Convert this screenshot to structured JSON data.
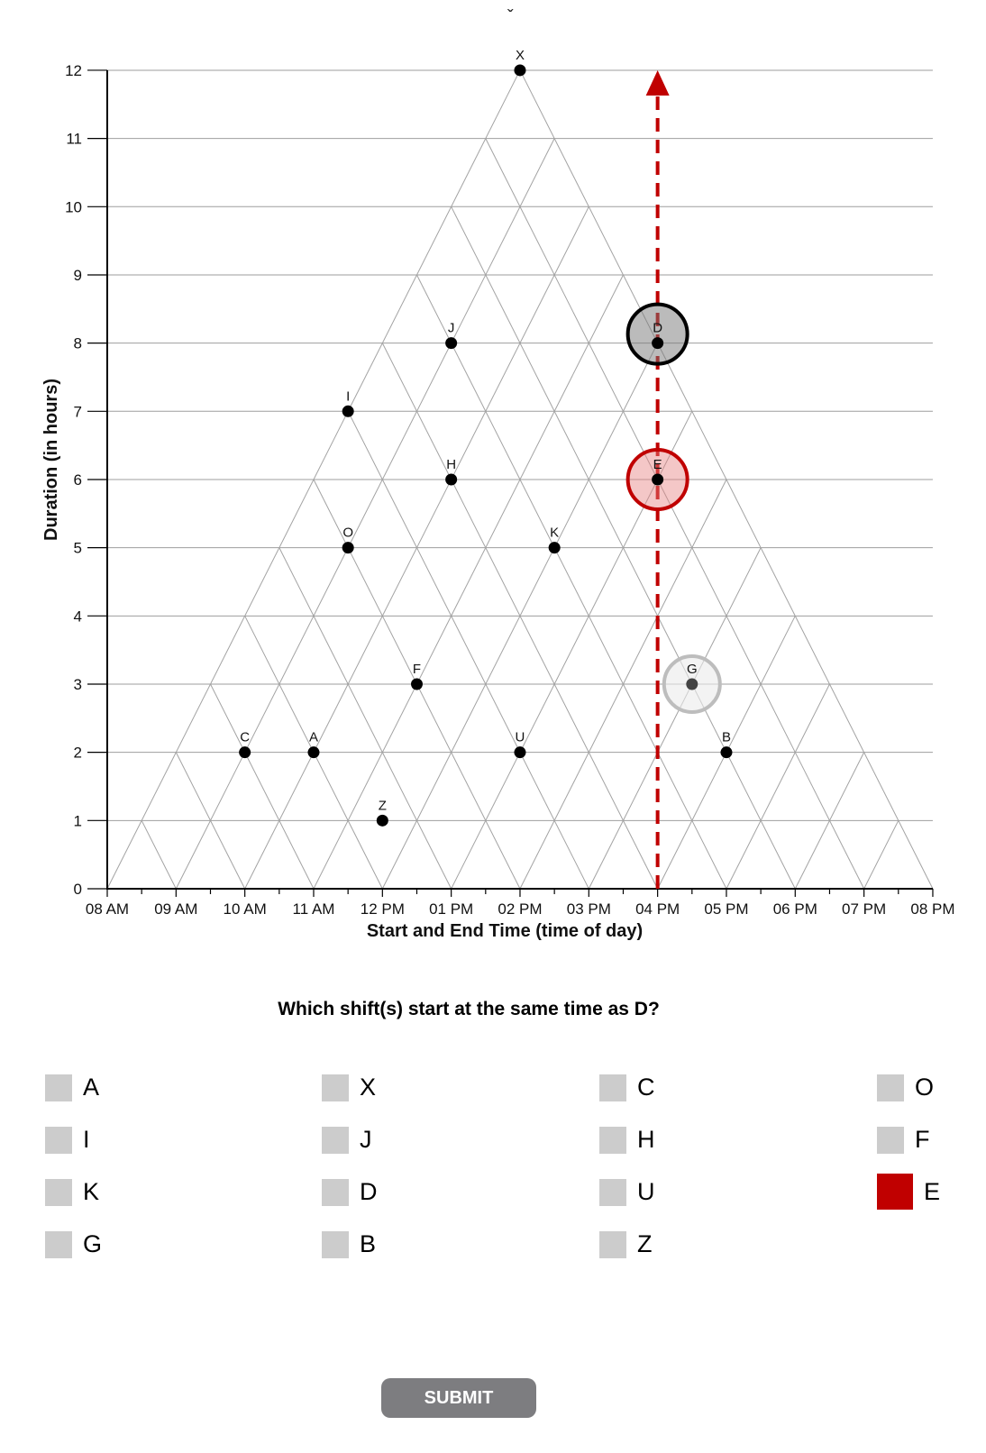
{
  "header": {
    "caret": "ˇ"
  },
  "chart_data": {
    "type": "scatter",
    "xlabel": "Start and End Time (time of day)",
    "ylabel": "Duration (in hours)",
    "x_ticks": [
      "08 AM",
      "09 AM",
      "10 AM",
      "11 AM",
      "12 PM",
      "01 PM",
      "02 PM",
      "03 PM",
      "04 PM",
      "05 PM",
      "06 PM",
      "07 PM",
      "08 PM"
    ],
    "y_ticks": [
      0,
      1,
      2,
      3,
      4,
      5,
      6,
      7,
      8,
      9,
      10,
      11,
      12
    ],
    "xlim_hours": [
      8,
      20
    ],
    "ylim": [
      0,
      12
    ],
    "grid": "horizontal lines and triangular start/end grid",
    "points": [
      {
        "label": "X",
        "midpoint_hour": 14,
        "duration": 12
      },
      {
        "label": "J",
        "midpoint_hour": 13,
        "duration": 8
      },
      {
        "label": "D",
        "midpoint_hour": 16,
        "duration": 8
      },
      {
        "label": "I",
        "midpoint_hour": 11.5,
        "duration": 7
      },
      {
        "label": "H",
        "midpoint_hour": 13,
        "duration": 6
      },
      {
        "label": "E",
        "midpoint_hour": 16,
        "duration": 6
      },
      {
        "label": "O",
        "midpoint_hour": 11.5,
        "duration": 5
      },
      {
        "label": "K",
        "midpoint_hour": 14.5,
        "duration": 5
      },
      {
        "label": "F",
        "midpoint_hour": 12.5,
        "duration": 3
      },
      {
        "label": "G",
        "midpoint_hour": 16.5,
        "duration": 3
      },
      {
        "label": "C",
        "midpoint_hour": 10,
        "duration": 2
      },
      {
        "label": "A",
        "midpoint_hour": 11,
        "duration": 2
      },
      {
        "label": "U",
        "midpoint_hour": 14,
        "duration": 2
      },
      {
        "label": "B",
        "midpoint_hour": 17,
        "duration": 2
      },
      {
        "label": "Z",
        "midpoint_hour": 12,
        "duration": 1
      }
    ],
    "highlights": [
      {
        "label": "D",
        "style": "focus",
        "color": "#000000"
      },
      {
        "label": "E",
        "style": "selected",
        "color": "#c00000"
      },
      {
        "label": "G",
        "style": "hover",
        "color": "#bdbdbd"
      }
    ],
    "guide_line": {
      "hour": 16,
      "from_duration": 0,
      "to_duration": 12,
      "color": "#c00000",
      "style": "dashed-arrow"
    }
  },
  "question": "Which shift(s) start at the same time as D?",
  "options": [
    {
      "label": "A",
      "checked": false
    },
    {
      "label": "X",
      "checked": false
    },
    {
      "label": "C",
      "checked": false
    },
    {
      "label": "O",
      "checked": false
    },
    {
      "label": "I",
      "checked": false
    },
    {
      "label": "J",
      "checked": false
    },
    {
      "label": "H",
      "checked": false
    },
    {
      "label": "F",
      "checked": false
    },
    {
      "label": "K",
      "checked": false
    },
    {
      "label": "D",
      "checked": false
    },
    {
      "label": "U",
      "checked": false
    },
    {
      "label": "E",
      "checked": true
    },
    {
      "label": "G",
      "checked": false
    },
    {
      "label": "B",
      "checked": false
    },
    {
      "label": "Z",
      "checked": false
    }
  ],
  "submit_label": "SUBMIT",
  "colors": {
    "accent": "#c00000",
    "checkbox": "#cccccc",
    "button": "#7d7d80"
  }
}
